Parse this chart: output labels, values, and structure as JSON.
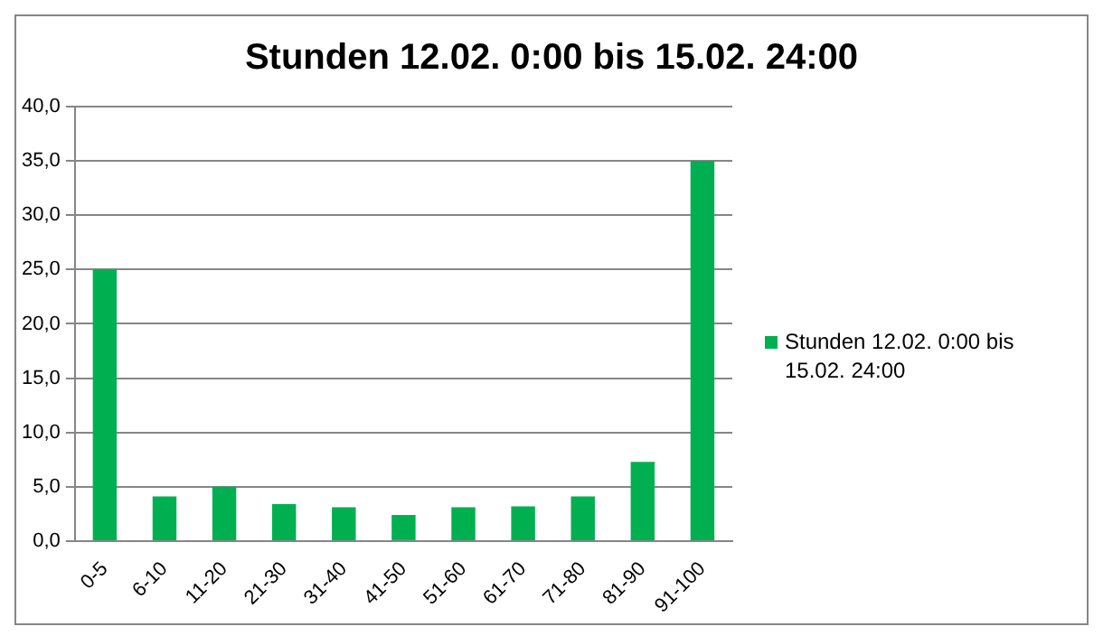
{
  "chart_data": {
    "type": "bar",
    "title": "Stunden 12.02. 0:00 bis 15.02. 24:00",
    "categories": [
      "0-5",
      "6-10",
      "11-20",
      "21-30",
      "31-40",
      "41-50",
      "51-60",
      "61-70",
      "71-80",
      "81-90",
      "91-100"
    ],
    "series": [
      {
        "name": "Stunden 12.02. 0:00 bis 15.02. 24:00",
        "color": "#00b050",
        "values": [
          25,
          4.1,
          5,
          3.4,
          3.1,
          2.4,
          3.1,
          3.2,
          4.1,
          7.3,
          35
        ]
      }
    ],
    "ylim": [
      0,
      40
    ],
    "yticks": [
      {
        "value": 0,
        "label": "0,0"
      },
      {
        "value": 5,
        "label": "5,0"
      },
      {
        "value": 10,
        "label": "10,0"
      },
      {
        "value": 15,
        "label": "15,0"
      },
      {
        "value": 20,
        "label": "20,0"
      },
      {
        "value": 25,
        "label": "25,0"
      },
      {
        "value": 30,
        "label": "30,0"
      },
      {
        "value": 35,
        "label": "35,0"
      },
      {
        "value": 40,
        "label": "40,0"
      }
    ],
    "grid": "y",
    "legend": "right"
  }
}
